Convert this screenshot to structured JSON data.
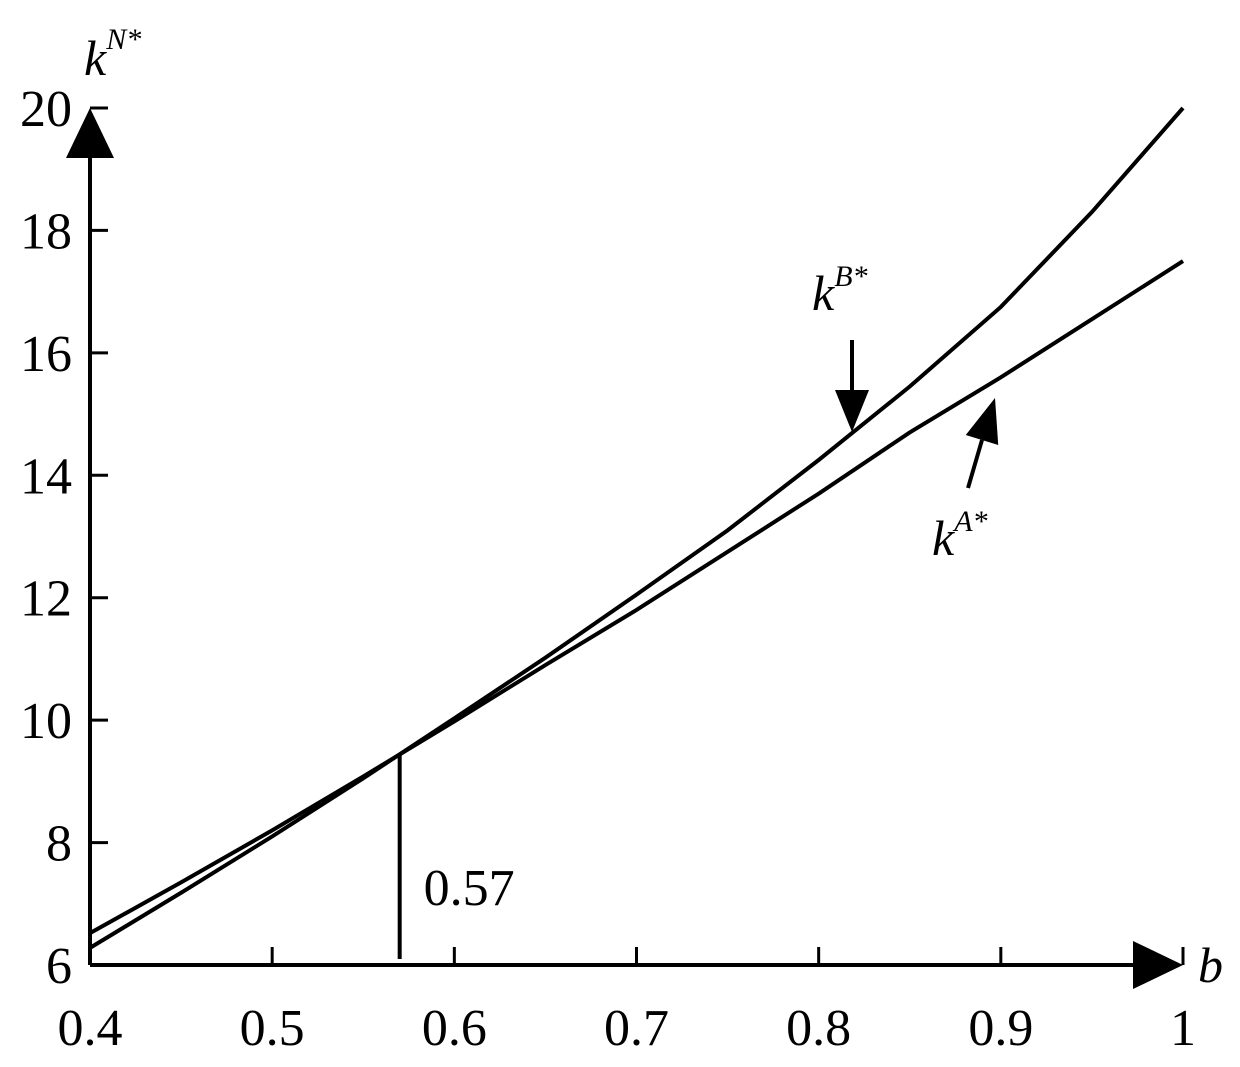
{
  "chart_data": {
    "type": "line",
    "x_label": "b",
    "y_label": {
      "base": "k",
      "sup": "N*"
    },
    "x": [
      0.4,
      0.45,
      0.5,
      0.55,
      0.6,
      0.65,
      0.7,
      0.75,
      0.8,
      0.85,
      0.9,
      0.95,
      1
    ],
    "series": [
      {
        "label": {
          "base": "k",
          "sup": "B*"
        },
        "color": "#000000",
        "values": [
          6.28,
          7.18,
          8.1,
          9.05,
          10.03,
          11.02,
          12.05,
          13.1,
          14.25,
          15.45,
          16.75,
          18.3,
          20
        ]
      },
      {
        "label": {
          "base": "k",
          "sup": "A*"
        },
        "color": "#000000",
        "values": [
          6.52,
          7.35,
          8.2,
          9.08,
          9.98,
          10.9,
          11.8,
          12.75,
          13.7,
          14.7,
          15.6,
          16.55,
          17.5
        ]
      }
    ],
    "annotations": [
      {
        "text": "0.57",
        "x": 0.57,
        "y": 9.43
      }
    ],
    "xlim": [
      0.4,
      1
    ],
    "ylim": [
      6,
      20
    ],
    "xticks": [
      0.4,
      0.5,
      0.6,
      0.7,
      0.8,
      0.9,
      1
    ],
    "yticks": [
      6,
      8,
      10,
      12,
      14,
      16,
      18,
      20
    ],
    "grid": false
  }
}
